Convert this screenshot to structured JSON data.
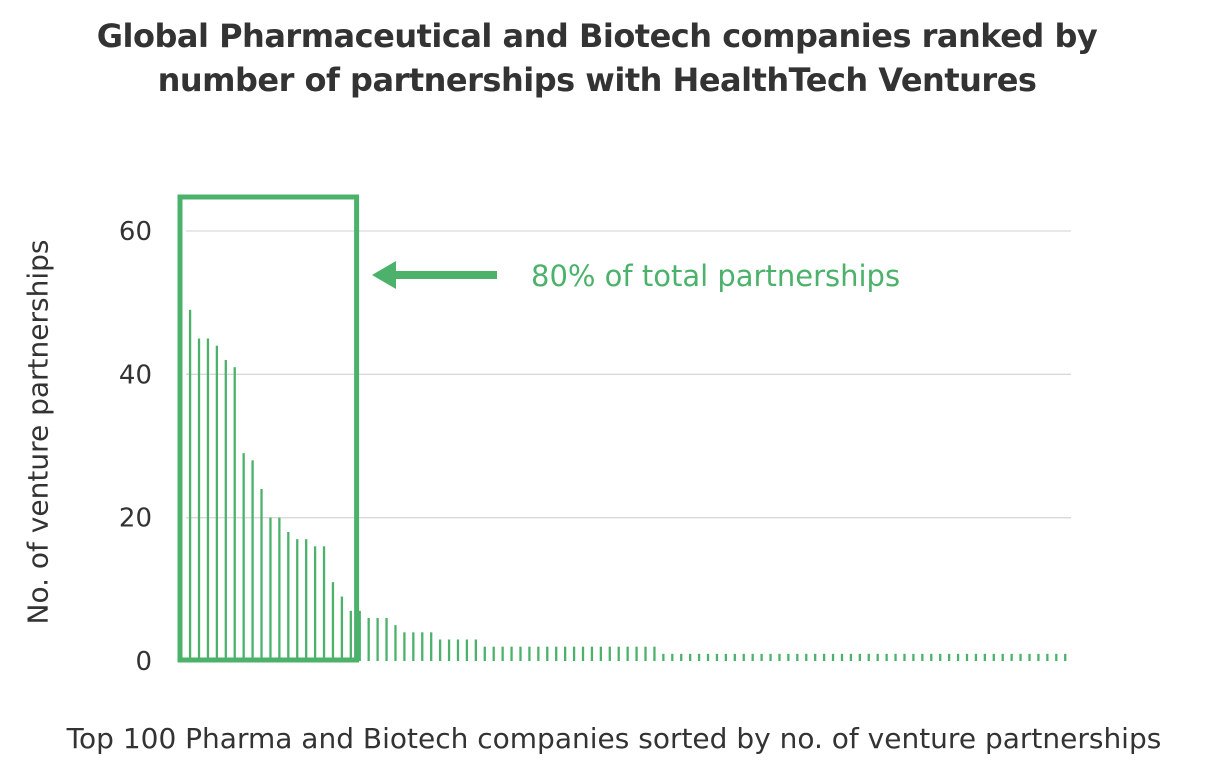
{
  "chart_data": {
    "type": "bar",
    "title": "Global Pharmaceutical and Biotech companies ranked by number of partnerships with HealthTech Ventures",
    "xlabel": "Top 100 Pharma and Biotech companies sorted by no. of venture partnerships",
    "ylabel": "No. of venture partnerships",
    "ylim": [
      0,
      60
    ],
    "yticks": [
      0,
      20,
      40,
      60
    ],
    "grid": true,
    "bar_color": "#4cb26b",
    "highlight_color": "#4cb26b",
    "highlight": {
      "label": "80% of total partnerships",
      "bar_count": 20
    },
    "values": [
      53,
      49,
      45,
      45,
      44,
      42,
      41,
      29,
      28,
      24,
      20,
      20,
      18,
      17,
      17,
      16,
      16,
      11,
      9,
      7,
      7,
      6,
      6,
      6,
      5,
      4,
      4,
      4,
      4,
      3,
      3,
      3,
      3,
      3,
      2,
      2,
      2,
      2,
      2,
      2,
      2,
      2,
      2,
      2,
      2,
      2,
      2,
      2,
      2,
      2,
      2,
      2,
      2,
      2,
      1,
      1,
      1,
      1,
      1,
      1,
      1,
      1,
      1,
      1,
      1,
      1,
      1,
      1,
      1,
      1,
      1,
      1,
      1,
      1,
      1,
      1,
      1,
      1,
      1,
      1,
      1,
      1,
      1,
      1,
      1,
      1,
      1,
      1,
      1,
      1,
      1,
      1,
      1,
      1,
      1,
      1,
      1,
      1,
      1,
      1
    ]
  }
}
